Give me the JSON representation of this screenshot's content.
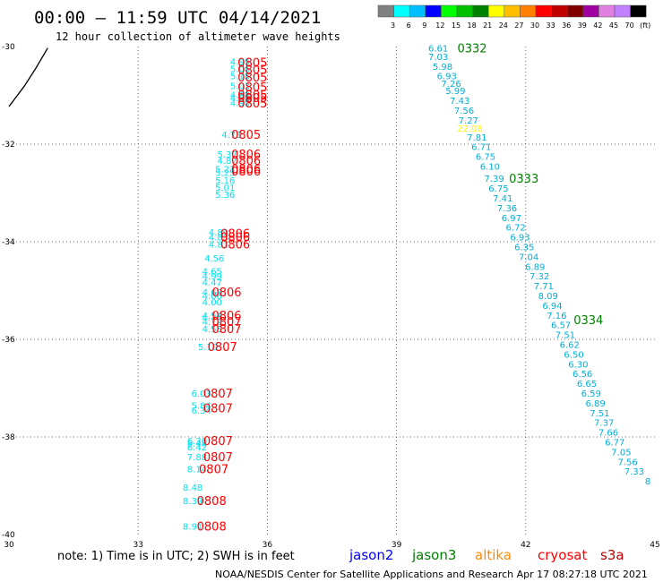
{
  "header": {
    "title": "00:00 – 11:59 UTC 04/14/2021",
    "subtitle": "12 hour collection of altimeter wave heights"
  },
  "colorbar": {
    "labels": [
      "3",
      "6",
      "9",
      "12",
      "15",
      "18",
      "21",
      "24",
      "27",
      "30",
      "33",
      "36",
      "39",
      "42",
      "45",
      "70",
      "(ft)"
    ],
    "colors": [
      "#808080",
      "#00ffff",
      "#00bfff",
      "#0000ff",
      "#00ff00",
      "#00c000",
      "#008000",
      "#ffff00",
      "#ffbf00",
      "#ff8000",
      "#ff0000",
      "#c00000",
      "#800000",
      "#a000a0",
      "#e080e0",
      "#c080ff",
      "#000000"
    ]
  },
  "footer": {
    "note": "note:  1) Time is in UTC;  2) SWH is in feet",
    "satellites": [
      {
        "name": "jason2",
        "color": "#0000ff"
      },
      {
        "name": "jason3",
        "color": "#008000"
      },
      {
        "name": "altika",
        "color": "#ff8c00"
      },
      {
        "name": "cryosat",
        "color": "#ff0000"
      },
      {
        "name": "s3a",
        "color": "#c00000"
      }
    ],
    "credit": "NOAA/NESDIS Center for Satellite Applications and Research   Apr 17 08:27:18 UTC 2021"
  },
  "chart_data": {
    "type": "scatter",
    "title": "00:00 – 11:59 UTC 04/14/2021",
    "subtitle": "12 hour collection of altimeter wave heights",
    "xlim": [
      30,
      45
    ],
    "ylim": [
      -40,
      -30
    ],
    "x_ticks": [
      30,
      33,
      36,
      39,
      42,
      45
    ],
    "y_ticks": [
      -30,
      -32,
      -34,
      -36,
      -38,
      -40
    ],
    "grid": true,
    "coastline": [
      [
        30.0,
        -31.23
      ],
      [
        30.35,
        -30.82
      ],
      [
        30.62,
        -30.45
      ],
      [
        30.9,
        -30.03
      ]
    ],
    "series": [
      {
        "name": "cryosat",
        "color": "#ff0000",
        "swh_color": "#00e0f0",
        "swh": [
          {
            "x": 35.6,
            "y": -30.3,
            "v": "4.99"
          },
          {
            "x": 35.6,
            "y": -30.45,
            "v": "5.06"
          },
          {
            "x": 35.6,
            "y": -30.6,
            "v": "5.18"
          },
          {
            "x": 35.6,
            "y": -30.8,
            "v": "5.03"
          },
          {
            "x": 35.6,
            "y": -30.98,
            "v": "4.88"
          },
          {
            "x": 35.6,
            "y": -31.05,
            "v": "4.98"
          },
          {
            "x": 35.6,
            "y": -31.15,
            "v": "4.90"
          },
          {
            "x": 35.4,
            "y": -31.8,
            "v": "4.73"
          },
          {
            "x": 35.3,
            "y": -32.2,
            "v": "5.37"
          },
          {
            "x": 35.3,
            "y": -32.33,
            "v": "4.87"
          },
          {
            "x": 35.25,
            "y": -32.5,
            "v": "5.23"
          },
          {
            "x": 35.25,
            "y": -32.58,
            "v": "5.25"
          },
          {
            "x": 35.25,
            "y": -32.73,
            "v": "5.16"
          },
          {
            "x": 35.25,
            "y": -32.88,
            "v": "5.01"
          },
          {
            "x": 35.25,
            "y": -33.03,
            "v": "5.36"
          },
          {
            "x": 35.1,
            "y": -33.8,
            "v": "4.89"
          },
          {
            "x": 35.1,
            "y": -33.9,
            "v": "4.83"
          },
          {
            "x": 35.1,
            "y": -34.05,
            "v": "4.81"
          },
          {
            "x": 35.0,
            "y": -34.33,
            "v": "4.56"
          },
          {
            "x": 34.95,
            "y": -34.6,
            "v": "4.65"
          },
          {
            "x": 34.95,
            "y": -34.7,
            "v": "4.99"
          },
          {
            "x": 34.95,
            "y": -34.83,
            "v": "4.47"
          },
          {
            "x": 34.95,
            "y": -35.03,
            "v": "4.63"
          },
          {
            "x": 34.95,
            "y": -35.1,
            "v": "4.06"
          },
          {
            "x": 34.95,
            "y": -35.23,
            "v": "4.00"
          },
          {
            "x": 34.95,
            "y": -35.5,
            "v": "4.54"
          },
          {
            "x": 34.95,
            "y": -35.55,
            "v": "4.74"
          },
          {
            "x": 34.95,
            "y": -35.63,
            "v": "4.72"
          },
          {
            "x": 34.95,
            "y": -35.78,
            "v": "4.55"
          },
          {
            "x": 34.85,
            "y": -36.15,
            "v": "5.10"
          },
          {
            "x": 34.7,
            "y": -37.1,
            "v": "6.03"
          },
          {
            "x": 34.7,
            "y": -37.35,
            "v": "5.84"
          },
          {
            "x": 34.7,
            "y": -37.45,
            "v": "6.34"
          },
          {
            "x": 34.6,
            "y": -38.07,
            "v": "6.30"
          },
          {
            "x": 34.6,
            "y": -38.12,
            "v": "6.48"
          },
          {
            "x": 34.6,
            "y": -38.2,
            "v": "6.42"
          },
          {
            "x": 34.6,
            "y": -38.4,
            "v": "7.88"
          },
          {
            "x": 34.6,
            "y": -38.65,
            "v": "8.14"
          },
          {
            "x": 34.5,
            "y": -39.03,
            "v": "8.48"
          },
          {
            "x": 34.5,
            "y": -39.3,
            "v": "8.39"
          },
          {
            "x": 34.5,
            "y": -39.83,
            "v": "8.91"
          }
        ],
        "cycles": [
          {
            "x": 36.0,
            "y": -30.32,
            "v": "0805"
          },
          {
            "x": 36.0,
            "y": -30.47,
            "v": "0805"
          },
          {
            "x": 36.0,
            "y": -30.62,
            "v": "0805"
          },
          {
            "x": 36.0,
            "y": -30.83,
            "v": "0805"
          },
          {
            "x": 36.0,
            "y": -30.98,
            "v": "0805"
          },
          {
            "x": 36.0,
            "y": -31.05,
            "v": "0805"
          },
          {
            "x": 36.0,
            "y": -31.16,
            "v": "0805"
          },
          {
            "x": 35.85,
            "y": -31.8,
            "v": "0805"
          },
          {
            "x": 35.85,
            "y": -32.2,
            "v": "0806"
          },
          {
            "x": 35.85,
            "y": -32.33,
            "v": "0806"
          },
          {
            "x": 35.85,
            "y": -32.5,
            "v": "0806"
          },
          {
            "x": 35.85,
            "y": -32.55,
            "v": "0806"
          },
          {
            "x": 35.6,
            "y": -33.83,
            "v": "0806"
          },
          {
            "x": 35.6,
            "y": -33.9,
            "v": "0806"
          },
          {
            "x": 35.6,
            "y": -34.05,
            "v": "0806"
          },
          {
            "x": 35.4,
            "y": -35.03,
            "v": "0806"
          },
          {
            "x": 35.4,
            "y": -35.5,
            "v": "0806"
          },
          {
            "x": 35.4,
            "y": -35.63,
            "v": "0807"
          },
          {
            "x": 35.4,
            "y": -35.78,
            "v": "0807"
          },
          {
            "x": 35.3,
            "y": -36.15,
            "v": "0807"
          },
          {
            "x": 35.2,
            "y": -37.1,
            "v": "0807"
          },
          {
            "x": 35.2,
            "y": -37.4,
            "v": "0807"
          },
          {
            "x": 35.2,
            "y": -38.07,
            "v": "0807"
          },
          {
            "x": 35.2,
            "y": -38.4,
            "v": "0807"
          },
          {
            "x": 35.1,
            "y": -38.65,
            "v": "0807"
          },
          {
            "x": 35.05,
            "y": -39.3,
            "v": "0808"
          },
          {
            "x": 35.05,
            "y": -39.83,
            "v": "0808"
          }
        ]
      },
      {
        "name": "jason3",
        "color": "#008000",
        "swh_color": "#00b0d8",
        "swh": [
          {
            "x": 40.2,
            "y": -30.03,
            "v": "6.61"
          },
          {
            "x": 40.2,
            "y": -30.2,
            "v": "7.03"
          },
          {
            "x": 40.3,
            "y": -30.4,
            "v": "5.98"
          },
          {
            "x": 40.4,
            "y": -30.6,
            "v": "6.93"
          },
          {
            "x": 40.5,
            "y": -30.75,
            "v": "7.26"
          },
          {
            "x": 40.6,
            "y": -30.9,
            "v": "5.99"
          },
          {
            "x": 40.7,
            "y": -31.1,
            "v": "7.43"
          },
          {
            "x": 40.8,
            "y": -31.3,
            "v": "7.56"
          },
          {
            "x": 40.9,
            "y": -31.5,
            "v": "7.27"
          },
          {
            "x": 41.0,
            "y": -31.67,
            "v": "22.08",
            "hl": "#ffff00"
          },
          {
            "x": 41.1,
            "y": -31.85,
            "v": "7.81"
          },
          {
            "x": 41.2,
            "y": -32.05,
            "v": "6.71"
          },
          {
            "x": 41.3,
            "y": -32.25,
            "v": "6.75"
          },
          {
            "x": 41.4,
            "y": -32.45,
            "v": "6.10"
          },
          {
            "x": 41.5,
            "y": -32.7,
            "v": "7.39"
          },
          {
            "x": 41.6,
            "y": -32.9,
            "v": "6.75"
          },
          {
            "x": 41.7,
            "y": -33.1,
            "v": "7.41"
          },
          {
            "x": 41.8,
            "y": -33.3,
            "v": "7.36"
          },
          {
            "x": 41.9,
            "y": -33.5,
            "v": "6.97"
          },
          {
            "x": 42.0,
            "y": -33.7,
            "v": "6.72"
          },
          {
            "x": 42.1,
            "y": -33.9,
            "v": "6.93"
          },
          {
            "x": 42.2,
            "y": -34.1,
            "v": "6.35"
          },
          {
            "x": 42.3,
            "y": -34.3,
            "v": "7.04"
          },
          {
            "x": 42.45,
            "y": -34.5,
            "v": "6.89"
          },
          {
            "x": 42.55,
            "y": -34.7,
            "v": "7.32"
          },
          {
            "x": 42.65,
            "y": -34.9,
            "v": "7.71"
          },
          {
            "x": 42.75,
            "y": -35.1,
            "v": "8.09"
          },
          {
            "x": 42.85,
            "y": -35.3,
            "v": "6.94"
          },
          {
            "x": 42.95,
            "y": -35.5,
            "v": "7.16"
          },
          {
            "x": 43.05,
            "y": -35.7,
            "v": "6.57"
          },
          {
            "x": 43.15,
            "y": -35.9,
            "v": "7.51"
          },
          {
            "x": 43.25,
            "y": -36.1,
            "v": "6.62"
          },
          {
            "x": 43.35,
            "y": -36.3,
            "v": "6.50"
          },
          {
            "x": 43.45,
            "y": -36.5,
            "v": "6.30"
          },
          {
            "x": 43.55,
            "y": -36.7,
            "v": "6.56"
          },
          {
            "x": 43.65,
            "y": -36.9,
            "v": "6.65"
          },
          {
            "x": 43.75,
            "y": -37.1,
            "v": "6.59"
          },
          {
            "x": 43.85,
            "y": -37.3,
            "v": "6.89"
          },
          {
            "x": 43.95,
            "y": -37.5,
            "v": "7.51"
          },
          {
            "x": 44.05,
            "y": -37.7,
            "v": "7.37"
          },
          {
            "x": 44.15,
            "y": -37.9,
            "v": "7.66"
          },
          {
            "x": 44.3,
            "y": -38.1,
            "v": "6.77"
          },
          {
            "x": 44.45,
            "y": -38.3,
            "v": "7.05"
          },
          {
            "x": 44.6,
            "y": -38.5,
            "v": "7.56"
          },
          {
            "x": 44.75,
            "y": -38.7,
            "v": "7.33"
          },
          {
            "x": 44.9,
            "y": -38.9,
            "v": "8"
          }
        ],
        "cycles": [
          {
            "x": 41.1,
            "y": -30.03,
            "v": "0332"
          },
          {
            "x": 42.3,
            "y": -32.7,
            "v": "0333"
          },
          {
            "x": 43.8,
            "y": -35.6,
            "v": "0334"
          }
        ]
      }
    ]
  }
}
